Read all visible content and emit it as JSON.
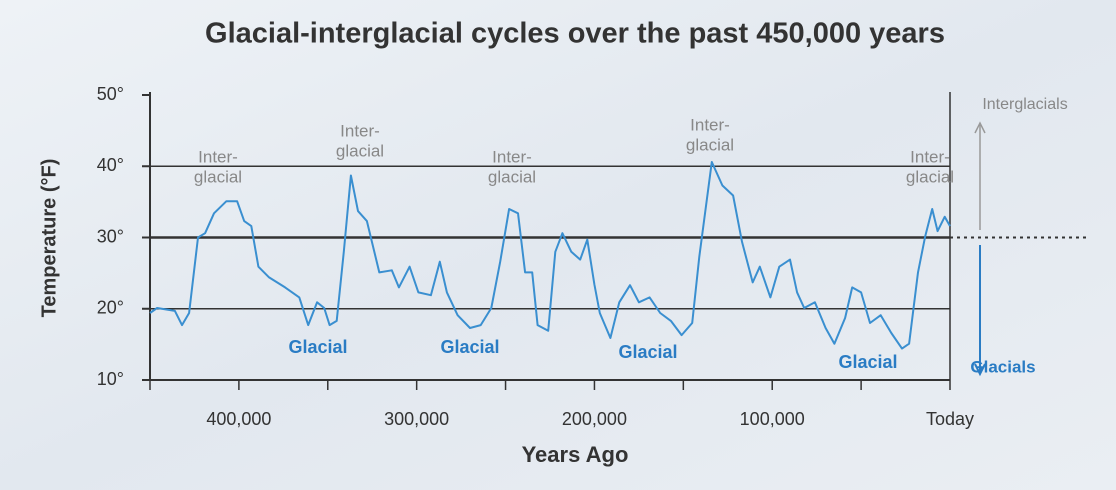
{
  "chart_data": {
    "type": "line",
    "title": "Glacial-interglacial cycles over the past 450,000 years",
    "x_label": "Years Ago",
    "y_label": "Temperature (°F)",
    "xlim": [
      450000,
      0
    ],
    "ylim": [
      10,
      50
    ],
    "xticks": [
      {
        "value": 400000,
        "label": "400,000"
      },
      {
        "value": 300000,
        "label": "300,000"
      },
      {
        "value": 200000,
        "label": "200,000"
      },
      {
        "value": 100000,
        "label": "100,000"
      },
      {
        "value": 0,
        "label": "Today"
      }
    ],
    "xminorticks": [
      450000,
      350000,
      250000,
      150000,
      50000
    ],
    "yticks": [
      {
        "value": 10,
        "label": "10°"
      },
      {
        "value": 20,
        "label": "20°"
      },
      {
        "value": 30,
        "label": "30°"
      },
      {
        "value": 40,
        "label": "40°"
      },
      {
        "value": 50,
        "label": "50°"
      }
    ],
    "grid": true,
    "reference_value": 30,
    "series": [
      {
        "color": "#3a8fd0",
        "x": [
          450000,
          446000,
          436000,
          432000,
          428000,
          423000,
          419000,
          414000,
          407000,
          401000,
          397000,
          393000,
          389000,
          383000,
          374000,
          366000,
          361000,
          356000,
          352000,
          349000,
          345000,
          341000,
          337000,
          333000,
          328000,
          321000,
          314000,
          310000,
          304000,
          299000,
          292000,
          287000,
          283000,
          277000,
          270000,
          264000,
          258000,
          253000,
          248000,
          243000,
          239000,
          235000,
          232000,
          226000,
          222000,
          218000,
          213000,
          208000,
          204000,
          200000,
          197000,
          191000,
          186000,
          180000,
          175000,
          169000,
          163000,
          157000,
          151000,
          145000,
          141000,
          134000,
          128000,
          122000,
          117000,
          111000,
          107000,
          101000,
          96000,
          90000,
          86000,
          82000,
          76000,
          70000,
          65000,
          59000,
          55000,
          50000,
          45000,
          39000,
          33000,
          27000,
          23000,
          18000,
          14000,
          10000,
          7000,
          3000,
          0
        ],
        "values": [
          19.4,
          20.1,
          19.7,
          17.7,
          19.4,
          30,
          30.6,
          33.4,
          35.1,
          35.1,
          32.3,
          31.6,
          25.9,
          24.4,
          23,
          21.6,
          17.7,
          20.9,
          20.1,
          17.7,
          18.3,
          28,
          38.7,
          33.7,
          32.3,
          25.1,
          25.4,
          23,
          25.9,
          22.3,
          21.9,
          26.6,
          22.3,
          19.1,
          17.3,
          17.7,
          20.1,
          26.6,
          34,
          33.4,
          25.1,
          25.1,
          17.7,
          16.9,
          28,
          30.6,
          28,
          26.9,
          29.7,
          23.4,
          19.4,
          15.9,
          20.9,
          23.3,
          20.9,
          21.6,
          19.4,
          18.3,
          16.3,
          18,
          27.3,
          40.6,
          37.3,
          35.9,
          29.4,
          23.7,
          25.9,
          21.6,
          25.9,
          26.9,
          22.3,
          20.1,
          20.9,
          17.3,
          15.1,
          18.7,
          23,
          22.3,
          18,
          19.1,
          16.6,
          14.4,
          15.1,
          25.1,
          30.1,
          34,
          30.9,
          32.9,
          31.6
        ]
      }
    ],
    "interglacial_labels": [
      [
        "Inter-",
        "glacial"
      ],
      [
        "Inter-",
        "glacial"
      ],
      [
        "Inter-",
        "glacial"
      ],
      [
        "Inter-",
        "glacial"
      ],
      [
        "Inter-",
        "glacial"
      ]
    ],
    "glacial_labels": [
      "Glacial",
      "Glacial",
      "Glacial",
      "Glacial"
    ],
    "legend": {
      "up": "Interglacials",
      "down": "Glacials"
    }
  }
}
